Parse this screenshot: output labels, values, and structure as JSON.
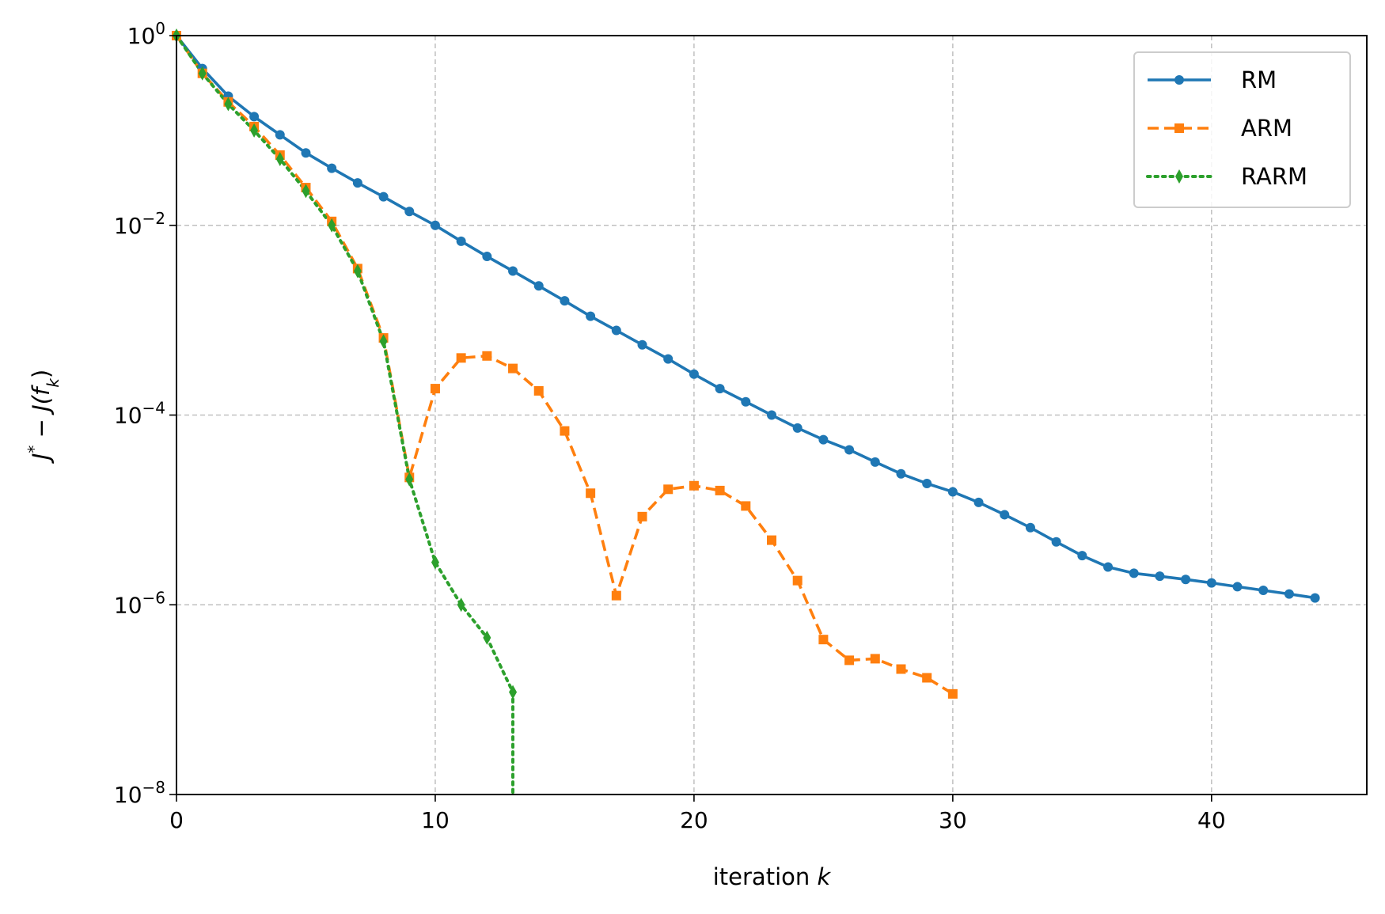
{
  "chart_data": {
    "type": "line",
    "title": "",
    "xlabel": "iteration k",
    "ylabel": "J* − J(f_k)",
    "xlabel_parts": {
      "prefix": "iteration ",
      "var": "k"
    },
    "ylabel_parts": {
      "j": "J",
      "star": "*",
      "minus": " − ",
      "j2": "J(",
      "f": "f",
      "sub": "k",
      "close": ")"
    },
    "xlim": [
      0,
      46
    ],
    "ylim": [
      1e-08,
      1
    ],
    "yscale": "log",
    "x_ticks": [
      0,
      10,
      20,
      30,
      40
    ],
    "x_tick_labels": [
      "0",
      "10",
      "20",
      "30",
      "40"
    ],
    "y_ticks": [
      1,
      0.01,
      0.0001,
      1e-06,
      1e-08
    ],
    "y_tick_labels": [
      {
        "base": "10",
        "exp": "0"
      },
      {
        "base": "10",
        "exp": "−2"
      },
      {
        "base": "10",
        "exp": "−4"
      },
      {
        "base": "10",
        "exp": "−6"
      },
      {
        "base": "10",
        "exp": "−8"
      }
    ],
    "grid": true,
    "legend_position": "top-right",
    "series": [
      {
        "name": "RM",
        "color": "#1f77b4",
        "linestyle": "solid",
        "marker": "circle",
        "x": [
          0,
          1,
          2,
          3,
          4,
          5,
          6,
          7,
          8,
          9,
          10,
          11,
          12,
          13,
          14,
          15,
          16,
          17,
          18,
          19,
          20,
          21,
          22,
          23,
          24,
          25,
          26,
          27,
          28,
          29,
          30,
          31,
          32,
          33,
          34,
          35,
          36,
          37,
          38,
          39,
          40,
          41,
          42,
          43,
          44
        ],
        "y": [
          1,
          0.45,
          0.23,
          0.14,
          0.09,
          0.058,
          0.04,
          0.028,
          0.02,
          0.014,
          0.01,
          0.0068,
          0.0047,
          0.0033,
          0.0023,
          0.0016,
          0.0011,
          0.00078,
          0.00055,
          0.00039,
          0.00027,
          0.00019,
          0.000138,
          0.0001,
          7.3e-05,
          5.5e-05,
          4.3e-05,
          3.2e-05,
          2.4e-05,
          1.9e-05,
          1.55e-05,
          1.2e-05,
          8.9e-06,
          6.5e-06,
          4.6e-06,
          3.3e-06,
          2.5e-06,
          2.15e-06,
          2e-06,
          1.85e-06,
          1.7e-06,
          1.55e-06,
          1.42e-06,
          1.3e-06,
          1.18e-06
        ]
      },
      {
        "name": "ARM",
        "color": "#ff7f0e",
        "linestyle": "dashed",
        "marker": "square",
        "x": [
          0,
          1,
          2,
          3,
          4,
          5,
          6,
          7,
          8,
          9,
          10,
          11,
          12,
          13,
          14,
          15,
          16,
          17,
          18,
          19,
          20,
          21,
          22,
          23,
          24,
          25,
          26,
          27,
          28,
          29,
          30
        ],
        "y": [
          1,
          0.4,
          0.2,
          0.11,
          0.055,
          0.025,
          0.011,
          0.0035,
          0.00065,
          2.2e-05,
          0.00019,
          0.0004,
          0.00042,
          0.00031,
          0.00018,
          6.8e-05,
          1.5e-05,
          1.25e-06,
          8.5e-06,
          1.65e-05,
          1.8e-05,
          1.6e-05,
          1.1e-05,
          4.8e-06,
          1.8e-06,
          4.3e-07,
          2.6e-07,
          2.7e-07,
          2.1e-07,
          1.7e-07,
          1.15e-07
        ]
      },
      {
        "name": "RARM",
        "color": "#2ca02c",
        "linestyle": "dotted",
        "marker": "diamond",
        "x": [
          0,
          1,
          2,
          3,
          4,
          5,
          6,
          7,
          8,
          9,
          10,
          11,
          12,
          13
        ],
        "y": [
          1,
          0.4,
          0.19,
          0.1,
          0.05,
          0.023,
          0.01,
          0.0033,
          0.0006,
          2.1e-05,
          2.8e-06,
          1e-06,
          4.5e-07,
          1.2e-07
        ],
        "tail_to_axis_at_x": 13
      }
    ]
  }
}
